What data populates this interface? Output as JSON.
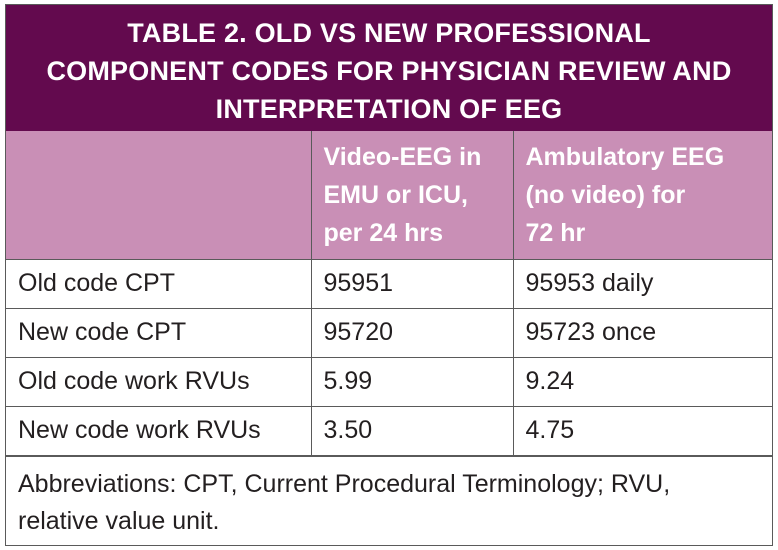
{
  "title_lines": [
    "TABLE 2. OLD VS NEW PROFESSIONAL",
    "COMPONENT CODES FOR PHYSICIAN REVIEW AND",
    "INTERPRETATION OF EEG"
  ],
  "columns": {
    "c1": "",
    "c2_lines": [
      "Video-EEG in",
      "EMU or ICU,",
      "per 24 hrs"
    ],
    "c3_lines": [
      "Ambulatory EEG",
      "(no video) for",
      "72 hr"
    ]
  },
  "rows": [
    {
      "label": "Old code CPT",
      "video": "95951",
      "ambulatory": "95953 daily"
    },
    {
      "label": "New code CPT",
      "video": "95720",
      "ambulatory": "95723 once"
    },
    {
      "label": "Old code work RVUs",
      "video": "5.99",
      "ambulatory": "9.24"
    },
    {
      "label": "New code work RVUs",
      "video": "3.50",
      "ambulatory": "4.75"
    }
  ],
  "footnote_lines": [
    "Abbreviations: CPT, Current Procedural Terminology; RVU,",
    "relative value unit."
  ],
  "colors": {
    "title_bg": "#630a4e",
    "header_bg": "#c98fb6",
    "border": "#5a5a5a"
  }
}
